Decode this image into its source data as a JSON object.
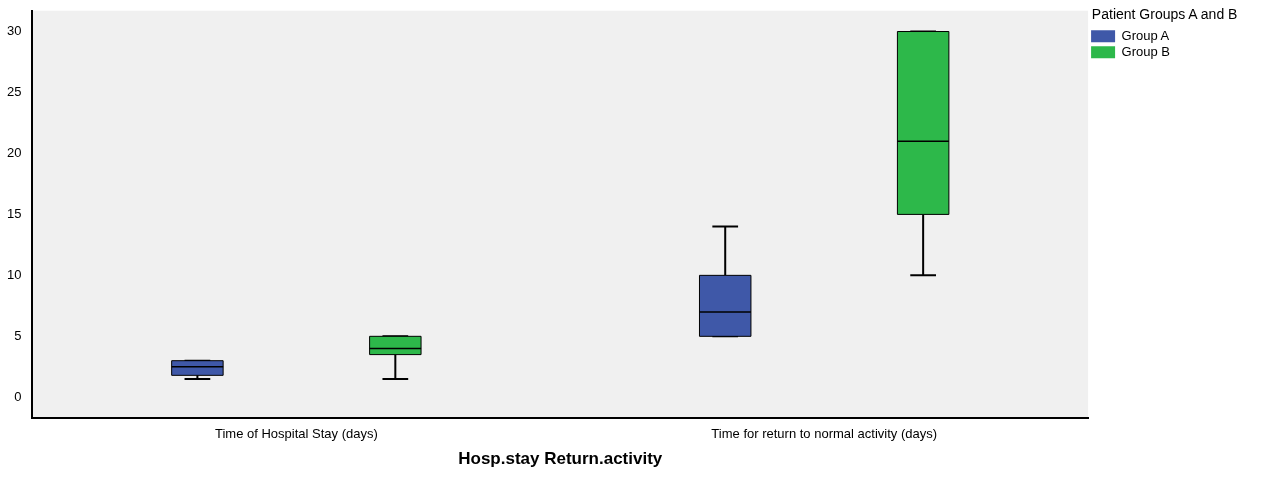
{
  "chart_data": {
    "type": "box",
    "xlabel": "Hosp.stay Return.activity",
    "legend_title": "Patient Groups A and B",
    "legend": "top right",
    "grid": false,
    "categories": [
      "Time of Hospital Stay (days)",
      "Time for return to normal activity (days)"
    ],
    "series": [
      {
        "name": "Group A",
        "color": "#3f58a8",
        "boxes": [
          {
            "low": 1.5,
            "q1": 1.8,
            "median": 2.5,
            "q3": 3,
            "high": 3
          },
          {
            "low": 5,
            "q1": 5,
            "median": 7,
            "q3": 10,
            "high": 14
          }
        ]
      },
      {
        "name": "Group B",
        "color": "#2db84a",
        "boxes": [
          {
            "low": 1.5,
            "q1": 3.5,
            "median": 4,
            "q3": 5,
            "high": 5
          },
          {
            "low": 10,
            "q1": 15,
            "median": 21,
            "q3": 30,
            "high": 30
          }
        ]
      }
    ],
    "ylim": [
      -1.7,
      31.7
    ],
    "yticks": [
      0,
      5,
      10,
      15,
      20,
      25,
      30
    ]
  }
}
